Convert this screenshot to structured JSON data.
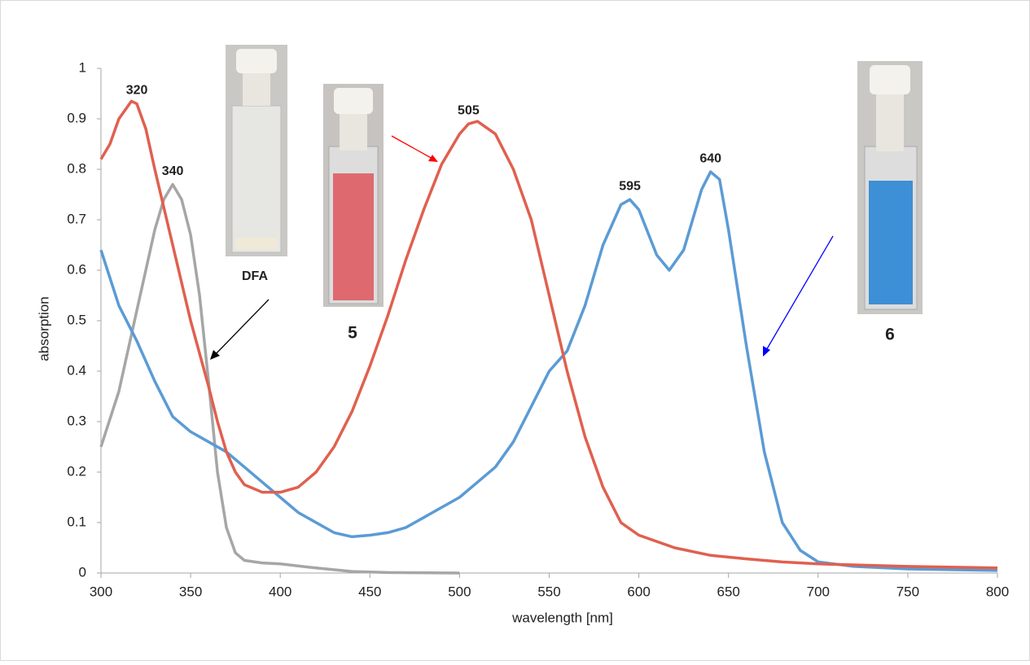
{
  "chart_data": {
    "type": "line",
    "x_label": "wavelength [nm]",
    "y_label": "absorption",
    "xlim": [
      300,
      800
    ],
    "ylim": [
      0,
      1
    ],
    "xticks": [
      300,
      350,
      400,
      450,
      500,
      550,
      600,
      650,
      700,
      750,
      800
    ],
    "yticks": [
      0,
      0.1,
      0.2,
      0.3,
      0.4,
      0.5,
      0.6,
      0.7,
      0.8,
      0.9,
      1
    ],
    "grid": false,
    "series": [
      {
        "name": "5",
        "color": "#e0604f",
        "x": [
          300,
          305,
          310,
          317,
          320,
          325,
          330,
          340,
          350,
          360,
          365,
          370,
          375,
          380,
          390,
          400,
          410,
          420,
          430,
          440,
          450,
          460,
          470,
          480,
          490,
          500,
          505,
          510,
          520,
          530,
          540,
          550,
          560,
          570,
          580,
          590,
          600,
          620,
          640,
          660,
          680,
          700,
          750,
          800
        ],
        "values": [
          0.82,
          0.85,
          0.9,
          0.935,
          0.93,
          0.88,
          0.8,
          0.65,
          0.5,
          0.37,
          0.3,
          0.24,
          0.2,
          0.175,
          0.16,
          0.16,
          0.17,
          0.2,
          0.25,
          0.32,
          0.41,
          0.51,
          0.62,
          0.72,
          0.81,
          0.87,
          0.89,
          0.895,
          0.87,
          0.8,
          0.7,
          0.55,
          0.4,
          0.27,
          0.17,
          0.1,
          0.075,
          0.05,
          0.035,
          0.028,
          0.022,
          0.018,
          0.013,
          0.01
        ],
        "peaks": [
          320,
          505
        ]
      },
      {
        "name": "DFA",
        "color": "#a6a6a6",
        "x": [
          300,
          310,
          320,
          330,
          335,
          340,
          345,
          350,
          355,
          360,
          365,
          370,
          375,
          380,
          390,
          400,
          420,
          440,
          460,
          500
        ],
        "values": [
          0.25,
          0.36,
          0.52,
          0.68,
          0.74,
          0.77,
          0.74,
          0.67,
          0.55,
          0.38,
          0.2,
          0.09,
          0.04,
          0.025,
          0.02,
          0.018,
          0.01,
          0.003,
          0.001,
          0
        ],
        "peaks": [
          340
        ]
      },
      {
        "name": "6",
        "color": "#5b9bd5",
        "x": [
          300,
          310,
          320,
          330,
          340,
          350,
          360,
          370,
          380,
          390,
          400,
          410,
          420,
          430,
          440,
          450,
          460,
          470,
          480,
          490,
          500,
          510,
          520,
          530,
          540,
          550,
          560,
          570,
          580,
          590,
          595,
          600,
          610,
          617,
          625,
          635,
          640,
          645,
          650,
          660,
          670,
          680,
          690,
          700,
          720,
          750,
          800
        ],
        "values": [
          0.64,
          0.53,
          0.46,
          0.38,
          0.31,
          0.28,
          0.26,
          0.24,
          0.21,
          0.18,
          0.15,
          0.12,
          0.1,
          0.08,
          0.072,
          0.075,
          0.08,
          0.09,
          0.11,
          0.13,
          0.15,
          0.18,
          0.21,
          0.26,
          0.33,
          0.4,
          0.44,
          0.53,
          0.65,
          0.73,
          0.74,
          0.72,
          0.63,
          0.6,
          0.64,
          0.76,
          0.795,
          0.78,
          0.68,
          0.45,
          0.24,
          0.1,
          0.045,
          0.022,
          0.013,
          0.008,
          0.005
        ],
        "peaks": [
          595,
          640
        ]
      }
    ]
  }
}
